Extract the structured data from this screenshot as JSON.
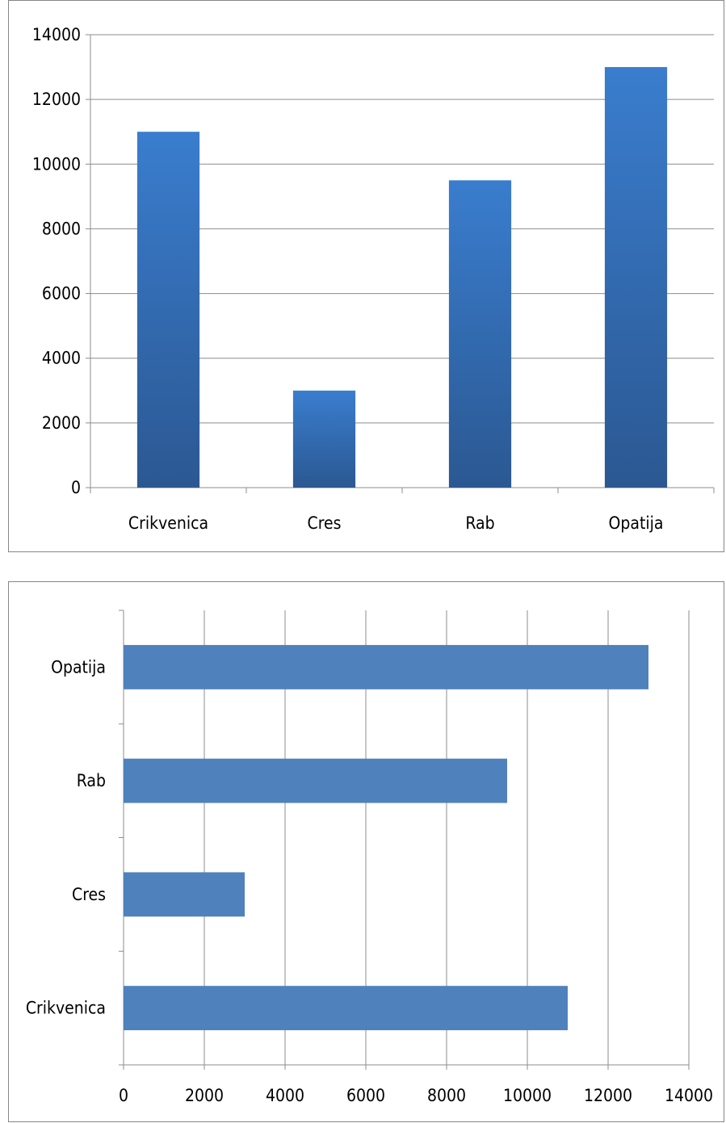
{
  "chart_data": [
    {
      "type": "bar",
      "orientation": "vertical",
      "title": "",
      "xlabel": "",
      "ylabel": "",
      "categories": [
        "Crikvenica",
        "Cres",
        "Rab",
        "Opatija"
      ],
      "values": [
        11000,
        3000,
        9500,
        13000
      ],
      "ylim": [
        0,
        14000
      ],
      "yticks": [
        "0",
        "2000",
        "4000",
        "6000",
        "8000",
        "10000",
        "12000",
        "14000"
      ],
      "grid": true,
      "legend": "none",
      "colors": {
        "bar_top": "#3a7dce",
        "bar_bottom": "#2b5892",
        "grid": "#8c8c8c"
      }
    },
    {
      "type": "bar",
      "orientation": "horizontal",
      "title": "",
      "xlabel": "",
      "ylabel": "",
      "categories": [
        "Crikvenica",
        "Cres",
        "Rab",
        "Opatija"
      ],
      "values": [
        11000,
        3000,
        9500,
        13000
      ],
      "xlim": [
        0,
        14000
      ],
      "xticks": [
        "0",
        "2000",
        "4000",
        "6000",
        "8000",
        "10000",
        "12000",
        "14000"
      ],
      "grid": true,
      "legend": "none",
      "colors": {
        "bar": "#4f81bd",
        "grid": "#8c8c8c"
      }
    }
  ]
}
